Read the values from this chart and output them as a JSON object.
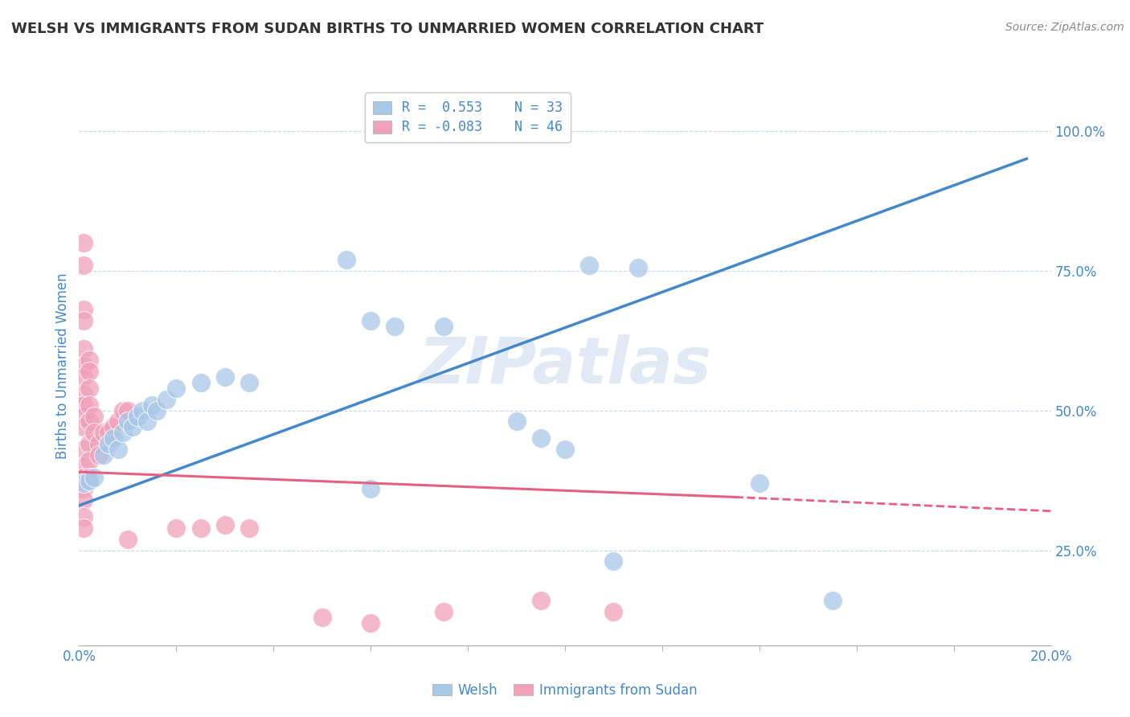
{
  "title": "WELSH VS IMMIGRANTS FROM SUDAN BIRTHS TO UNMARRIED WOMEN CORRELATION CHART",
  "source": "Source: ZipAtlas.com",
  "ylabel": "Births to Unmarried Women",
  "ylabel_ticks": [
    "25.0%",
    "50.0%",
    "75.0%",
    "100.0%"
  ],
  "watermark": "ZIPatlas",
  "legend_blue_r": "R =  0.553",
  "legend_blue_n": "N = 33",
  "legend_pink_r": "R = -0.083",
  "legend_pink_n": "N = 46",
  "blue_color": "#a8c8e8",
  "pink_color": "#f0a0b8",
  "blue_line_color": "#4488cc",
  "pink_line_color": "#e86080",
  "title_color": "#333333",
  "axis_color": "#4488cc",
  "grid_color": "#c8d8e8",
  "background_color": "#ffffff",
  "welsh_points": [
    [
      0.001,
      0.37
    ],
    [
      0.002,
      0.375
    ],
    [
      0.003,
      0.38
    ],
    [
      0.005,
      0.42
    ],
    [
      0.006,
      0.44
    ],
    [
      0.007,
      0.45
    ],
    [
      0.008,
      0.43
    ],
    [
      0.009,
      0.46
    ],
    [
      0.01,
      0.48
    ],
    [
      0.011,
      0.47
    ],
    [
      0.012,
      0.49
    ],
    [
      0.013,
      0.5
    ],
    [
      0.014,
      0.48
    ],
    [
      0.015,
      0.51
    ],
    [
      0.016,
      0.5
    ],
    [
      0.018,
      0.52
    ],
    [
      0.02,
      0.54
    ],
    [
      0.025,
      0.55
    ],
    [
      0.03,
      0.56
    ],
    [
      0.035,
      0.55
    ],
    [
      0.055,
      0.77
    ],
    [
      0.06,
      0.66
    ],
    [
      0.065,
      0.65
    ],
    [
      0.075,
      0.65
    ],
    [
      0.09,
      0.48
    ],
    [
      0.095,
      0.45
    ],
    [
      0.1,
      0.43
    ],
    [
      0.06,
      0.36
    ],
    [
      0.11,
      0.23
    ],
    [
      0.105,
      0.76
    ],
    [
      0.115,
      0.755
    ],
    [
      0.14,
      0.37
    ],
    [
      0.155,
      0.16
    ]
  ],
  "sudan_points": [
    [
      0.001,
      0.8
    ],
    [
      0.001,
      0.76
    ],
    [
      0.001,
      0.68
    ],
    [
      0.001,
      0.66
    ],
    [
      0.001,
      0.61
    ],
    [
      0.001,
      0.58
    ],
    [
      0.001,
      0.56
    ],
    [
      0.001,
      0.53
    ],
    [
      0.001,
      0.51
    ],
    [
      0.001,
      0.49
    ],
    [
      0.001,
      0.47
    ],
    [
      0.001,
      0.43
    ],
    [
      0.001,
      0.4
    ],
    [
      0.001,
      0.38
    ],
    [
      0.001,
      0.36
    ],
    [
      0.001,
      0.34
    ],
    [
      0.001,
      0.31
    ],
    [
      0.001,
      0.29
    ],
    [
      0.002,
      0.59
    ],
    [
      0.002,
      0.57
    ],
    [
      0.002,
      0.54
    ],
    [
      0.002,
      0.51
    ],
    [
      0.002,
      0.48
    ],
    [
      0.002,
      0.44
    ],
    [
      0.002,
      0.41
    ],
    [
      0.002,
      0.38
    ],
    [
      0.003,
      0.49
    ],
    [
      0.003,
      0.46
    ],
    [
      0.004,
      0.44
    ],
    [
      0.004,
      0.42
    ],
    [
      0.005,
      0.46
    ],
    [
      0.006,
      0.46
    ],
    [
      0.007,
      0.47
    ],
    [
      0.008,
      0.48
    ],
    [
      0.009,
      0.5
    ],
    [
      0.01,
      0.5
    ],
    [
      0.01,
      0.27
    ],
    [
      0.02,
      0.29
    ],
    [
      0.025,
      0.29
    ],
    [
      0.03,
      0.295
    ],
    [
      0.035,
      0.29
    ],
    [
      0.05,
      0.13
    ],
    [
      0.06,
      0.12
    ],
    [
      0.075,
      0.14
    ],
    [
      0.095,
      0.16
    ],
    [
      0.11,
      0.14
    ]
  ],
  "xlim": [
    0.0,
    0.2
  ],
  "ylim": [
    0.08,
    1.08
  ],
  "blue_regression": [
    0.0,
    0.33,
    0.195,
    0.95
  ],
  "pink_regression_solid": [
    0.0,
    0.39,
    0.135,
    0.345
  ],
  "pink_regression_dashed": [
    0.135,
    0.345,
    0.2,
    0.32
  ]
}
